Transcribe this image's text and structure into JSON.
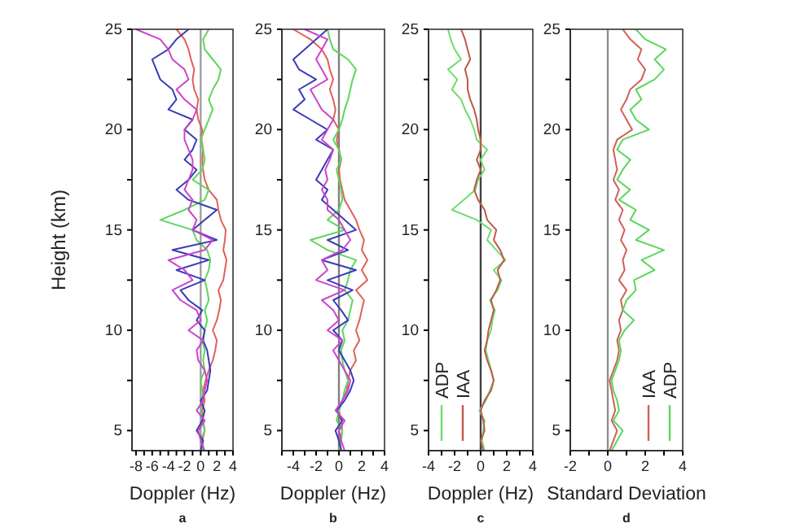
{
  "chart_data": [
    {
      "type": "line",
      "ylabel": "Height (km)",
      "xlabel": "Doppler (Hz)",
      "annotations": [
        "a"
      ],
      "xlim": [
        -8.5,
        4
      ],
      "ylim": [
        4,
        25
      ],
      "xticks": [
        -8,
        {
          "value": -7,
          "label": null
        },
        -6,
        {
          "value": -5,
          "label": null
        },
        -4,
        {
          "value": -3,
          "label": null
        },
        -2,
        {
          "value": -1,
          "label": null
        },
        0,
        {
          "value": 1,
          "label": null
        },
        2,
        {
          "value": 3,
          "label": null
        },
        4
      ],
      "yticks": [
        5,
        {
          "value": 7.5,
          "label": null
        },
        10,
        {
          "value": 12.5,
          "label": null
        },
        15,
        {
          "value": 17.5,
          "label": null
        },
        20,
        {
          "value": 22.5,
          "label": null
        },
        25
      ],
      "ref_lines": [
        {
          "axis": "x",
          "value": 0,
          "color": "#a0a0a0"
        }
      ],
      "legend": false,
      "grid": false,
      "series": [
        {
          "color": "#e0605a",
          "x": [
            0.3,
            0.2,
            0.5,
            0.3,
            0.2,
            0.5,
            0.3,
            0.6,
            1,
            1.5,
            1.8,
            2,
            1.5,
            2,
            2.3,
            2.5,
            2.2,
            2.8,
            3,
            3.2,
            2.8,
            3,
            3.1,
            2.5,
            2.2,
            2,
            1,
            0.5,
            0.3,
            0.2,
            0.3,
            0.1,
            0.2,
            -0.3,
            -0.5,
            -0.3,
            -0.8,
            -1,
            -0.8,
            -1.2,
            -1.5,
            -2,
            -3
          ],
          "values": [
            4,
            4.5,
            5,
            5.5,
            6,
            6.5,
            7,
            7.5,
            8,
            8.5,
            9,
            9.5,
            10,
            10.5,
            11,
            11.5,
            12,
            12.5,
            13,
            13.5,
            14,
            14.5,
            15,
            15.5,
            16,
            16.5,
            17,
            17.5,
            18,
            18.5,
            19,
            19.5,
            20,
            20.5,
            21,
            21.5,
            22,
            22.5,
            23,
            23.5,
            24,
            24.5,
            25
          ]
        },
        {
          "color": "#5cd65c",
          "x": [
            0.3,
            0,
            0.5,
            0.2,
            0,
            0.3,
            0.2,
            0,
            0.5,
            0.3,
            0.5,
            0.2,
            0.5,
            0.8,
            0.5,
            1,
            0.8,
            0.5,
            1,
            1.2,
            0.8,
            -0.5,
            -1,
            -5,
            -2,
            0.5,
            1,
            -1,
            0.2,
            0.5,
            0.3,
            0,
            0.5,
            1,
            1.5,
            1,
            1.5,
            2.2,
            2.5,
            1.5,
            0.5,
            0.3,
            1
          ],
          "values": [
            4,
            4.5,
            5,
            5.5,
            6,
            6.5,
            7,
            7.5,
            8,
            8.5,
            9,
            9.5,
            10,
            10.5,
            11,
            11.5,
            12,
            12.5,
            13,
            13.5,
            14,
            14.5,
            15,
            15.5,
            16,
            16.5,
            17,
            17.5,
            18,
            18.5,
            19,
            19.5,
            20,
            20.5,
            21,
            21.5,
            22,
            22.5,
            23,
            23.5,
            24,
            24.5,
            25
          ]
        },
        {
          "color": "#3b3bb8",
          "x": [
            0,
            0.3,
            -0.5,
            0.2,
            0.5,
            0,
            0.8,
            1,
            1.2,
            1,
            0.8,
            0.3,
            0.5,
            -0.5,
            0.2,
            -1.5,
            -2.5,
            0.5,
            -3,
            1,
            -3.5,
            2,
            -1,
            0.5,
            2,
            -1.5,
            -3,
            -1.5,
            -0.5,
            -2,
            -1,
            -0.5,
            -2,
            -1,
            -4,
            -3,
            -3.5,
            -5,
            -5.5,
            -6,
            -4,
            -3,
            -1.5
          ],
          "values": [
            4,
            4.5,
            5,
            5.5,
            6,
            6.5,
            7,
            7.5,
            8,
            8.5,
            9,
            9.5,
            10,
            10.5,
            11,
            11.5,
            12,
            12.5,
            13,
            13.5,
            14,
            14.5,
            15,
            15.5,
            16,
            16.5,
            17,
            17.5,
            18,
            18.5,
            19,
            19.5,
            20,
            20.5,
            21,
            21.5,
            22,
            22.5,
            23,
            23.5,
            24,
            24.5,
            25
          ]
        },
        {
          "color": "#cc44cc",
          "x": [
            0.5,
            0,
            -0.3,
            0.5,
            -0.5,
            0.3,
            0.5,
            0.8,
            0.5,
            -0.3,
            -0.5,
            0.3,
            -1.5,
            0,
            -0.5,
            -2.5,
            -3.5,
            -1,
            -2,
            -4,
            0.5,
            1.5,
            -1,
            -0.5,
            -1.5,
            -1,
            -2,
            -1.5,
            -1,
            -1,
            -1.5,
            -2,
            -2,
            -1,
            -0.5,
            -2,
            -3,
            -1.5,
            -2,
            -3.5,
            -4,
            -5,
            -8
          ],
          "values": [
            4,
            4.5,
            5,
            5.5,
            6,
            6.5,
            7,
            7.5,
            8,
            8.5,
            9,
            9.5,
            10,
            10.5,
            11,
            11.5,
            12,
            12.5,
            13,
            13.5,
            14,
            14.5,
            15,
            15.5,
            16,
            16.5,
            17,
            17.5,
            18,
            18.5,
            19,
            19.5,
            20,
            20.5,
            21,
            21.5,
            22,
            22.5,
            23,
            23.5,
            24,
            24.5,
            25
          ]
        }
      ]
    },
    {
      "type": "line",
      "xlabel": "Doppler (Hz)",
      "annotations": [
        "b"
      ],
      "xlim": [
        -5,
        4
      ],
      "ylim": [
        4,
        25
      ],
      "xticks": [
        {
          "value": -5,
          "label": null
        },
        -4,
        {
          "value": -3,
          "label": null
        },
        -2,
        {
          "value": -1,
          "label": null
        },
        0,
        {
          "value": 1,
          "label": null
        },
        2,
        {
          "value": 3,
          "label": null
        },
        4
      ],
      "yticks": [
        5,
        {
          "value": 7.5,
          "label": null
        },
        10,
        {
          "value": 12.5,
          "label": null
        },
        15,
        {
          "value": 17.5,
          "label": null
        },
        20,
        {
          "value": 22.5,
          "label": null
        },
        25
      ],
      "ref_lines": [
        {
          "axis": "x",
          "value": 0,
          "color": "#808080"
        }
      ],
      "legend": false,
      "grid": false,
      "series": [
        {
          "color": "#e0605a",
          "x": [
            0.2,
            0.1,
            0.3,
            0.2,
            0,
            0.3,
            0.7,
            0.8,
            1,
            1.5,
            1.3,
            1.8,
            1.5,
            1.8,
            2,
            2.2,
            1.5,
            2.5,
            2,
            2.5,
            2,
            2.2,
            1.8,
            1.5,
            1,
            0.5,
            0.3,
            0.1,
            0,
            0.2,
            0,
            -0.2,
            0,
            -0.5,
            -0.3,
            -0.5,
            -0.8,
            -0.5,
            -0.8,
            -1,
            -1.5,
            -2.5,
            -4
          ],
          "values": [
            4,
            4.5,
            5,
            5.5,
            6,
            6.5,
            7,
            7.5,
            8,
            8.5,
            9,
            9.5,
            10,
            10.5,
            11,
            11.5,
            12,
            12.5,
            13,
            13.5,
            14,
            14.5,
            15,
            15.5,
            16,
            16.5,
            17,
            17.5,
            18,
            18.5,
            19,
            19.5,
            20,
            20.5,
            21,
            21.5,
            22,
            22.5,
            23,
            23.5,
            24,
            24.5,
            25
          ]
        },
        {
          "color": "#5cd65c",
          "x": [
            0,
            0.2,
            0.3,
            -0.2,
            0,
            0.3,
            0.5,
            0.8,
            0.5,
            0.3,
            0.2,
            0.5,
            0.3,
            0.8,
            1,
            1.2,
            0.5,
            0.8,
            1,
            1.5,
            -1,
            -2.5,
            0.5,
            -1,
            0,
            0.3,
            0.2,
            0,
            -0.2,
            0.2,
            0,
            -0.5,
            0,
            0.3,
            0.5,
            0.8,
            1,
            1.2,
            1.5,
            0.8,
            -0.5,
            -0.8,
            -1
          ],
          "values": [
            4,
            4.5,
            5,
            5.5,
            6,
            6.5,
            7,
            7.5,
            8,
            8.5,
            9,
            9.5,
            10,
            10.5,
            11,
            11.5,
            12,
            12.5,
            13,
            13.5,
            14,
            14.5,
            15,
            15.5,
            16,
            16.5,
            17,
            17.5,
            18,
            18.5,
            19,
            19.5,
            20,
            20.5,
            21,
            21.5,
            22,
            22.5,
            23,
            23.5,
            24,
            24.5,
            25
          ]
        },
        {
          "color": "#3b3bb8",
          "x": [
            0.2,
            0,
            -0.3,
            0.3,
            -0.2,
            0.5,
            1,
            1.3,
            1,
            0.5,
            0,
            0.3,
            -0.5,
            0.8,
            0.2,
            -0.5,
            1.2,
            -1,
            1.5,
            -1.5,
            0.8,
            -1,
            1.5,
            0.5,
            -0.5,
            -1.5,
            -1,
            -2,
            -1.5,
            -1,
            -0.5,
            -2,
            -1,
            -2.5,
            -4,
            -3,
            -3.5,
            -2,
            -3.5,
            -4,
            -3,
            -2,
            -1
          ],
          "values": [
            4,
            4.5,
            5,
            5.5,
            6,
            6.5,
            7,
            7.5,
            8,
            8.5,
            9,
            9.5,
            10,
            10.5,
            11,
            11.5,
            12,
            12.5,
            13,
            13.5,
            14,
            14.5,
            15,
            15.5,
            16,
            16.5,
            17,
            17.5,
            18,
            18.5,
            19,
            19.5,
            20,
            20.5,
            21,
            21.5,
            22,
            22.5,
            23,
            23.5,
            24,
            24.5,
            25
          ]
        },
        {
          "color": "#cc44cc",
          "x": [
            0.5,
            0.2,
            0,
            0.5,
            -0.3,
            0.3,
            0.8,
            1,
            0.5,
            0,
            -0.5,
            0.3,
            -1,
            0,
            -0.5,
            -1.5,
            0.5,
            -2,
            -1,
            -1.5,
            0.3,
            1,
            0.5,
            0,
            -1,
            -1,
            -1.5,
            -1,
            -1.2,
            -0.8,
            -0.5,
            -1.5,
            -1,
            -0.5,
            -1.5,
            -2,
            -2.5,
            -1,
            -1.5,
            -2,
            -1.5,
            -1,
            -3
          ],
          "values": [
            4,
            4.5,
            5,
            5.5,
            6,
            6.5,
            7,
            7.5,
            8,
            8.5,
            9,
            9.5,
            10,
            10.5,
            11,
            11.5,
            12,
            12.5,
            13,
            13.5,
            14,
            14.5,
            15,
            15.5,
            16,
            16.5,
            17,
            17.5,
            18,
            18.5,
            19,
            19.5,
            20,
            20.5,
            21,
            21.5,
            22,
            22.5,
            23,
            23.5,
            24,
            24.5,
            25
          ]
        }
      ]
    },
    {
      "type": "line",
      "xlabel": "Doppler (Hz)",
      "annotations": [
        "c"
      ],
      "xlim": [
        -4,
        4
      ],
      "ylim": [
        4,
        25
      ],
      "xticks": [
        -4,
        {
          "value": -3,
          "label": null
        },
        -2,
        {
          "value": -1,
          "label": null
        },
        0,
        {
          "value": 1,
          "label": null
        },
        2,
        {
          "value": 3,
          "label": null
        },
        4
      ],
      "yticks": [
        5,
        {
          "value": 7.5,
          "label": null
        },
        10,
        {
          "value": 12.5,
          "label": null
        },
        15,
        {
          "value": 17.5,
          "label": null
        },
        20,
        {
          "value": 22.5,
          "label": null
        },
        25
      ],
      "ref_lines": [
        {
          "axis": "x",
          "value": 0,
          "color": "#404040"
        }
      ],
      "legend": "bottom left",
      "grid": false,
      "series": [
        {
          "name": "ADP",
          "color": "#6fdc6f",
          "x": [
            0.3,
            0.1,
            0.2,
            0.3,
            -0.1,
            0.4,
            0.7,
            1,
            0.8,
            0.6,
            0.4,
            0.5,
            0.8,
            0.9,
            1.1,
            0.7,
            1.3,
            1.6,
            1,
            1.9,
            1.2,
            0.5,
            0.8,
            -0.3,
            -2.2,
            -1.3,
            -0.4,
            -0.2,
            0.3,
            0,
            0.5,
            -0.3,
            -0.5,
            -0.8,
            -1.2,
            -1.5,
            -2.2,
            -1.8,
            -2.5,
            -1.5,
            -2,
            -2.3,
            -2.5
          ],
          "values": [
            4,
            4.5,
            5,
            5.5,
            6,
            6.5,
            7,
            7.5,
            8,
            8.5,
            9,
            9.5,
            10,
            10.5,
            11,
            11.5,
            12,
            12.5,
            13,
            13.5,
            14,
            14.5,
            15,
            15.5,
            16,
            16.5,
            17,
            17.5,
            18,
            18.5,
            19,
            19.5,
            20,
            20.5,
            21,
            21.5,
            22,
            22.5,
            23,
            23.5,
            24,
            24.5,
            25
          ]
        },
        {
          "name": "IAA",
          "color": "#c0584a",
          "x": [
            0.2,
            0,
            0.3,
            0.2,
            0,
            0.3,
            0.8,
            1,
            0.8,
            0.5,
            0.3,
            0.5,
            0.6,
            0.8,
            1,
            0.8,
            1.2,
            1.5,
            1.3,
            1.8,
            1.5,
            1,
            1.2,
            0.5,
            0.3,
            -0.2,
            -0.5,
            -0.3,
            0,
            -0.3,
            0,
            0,
            -0.2,
            -0.3,
            -0.5,
            -0.8,
            -1,
            -1,
            -1.2,
            -0.8,
            -1,
            -1.2,
            -1.5
          ],
          "values": [
            4,
            4.5,
            5,
            5.5,
            6,
            6.5,
            7,
            7.5,
            8,
            8.5,
            9,
            9.5,
            10,
            10.5,
            11,
            11.5,
            12,
            12.5,
            13,
            13.5,
            14,
            14.5,
            15,
            15.5,
            16,
            16.5,
            17,
            17.5,
            18,
            18.5,
            19,
            19.5,
            20,
            20.5,
            21,
            21.5,
            22,
            22.5,
            23,
            23.5,
            24,
            24.5,
            25
          ]
        }
      ]
    },
    {
      "type": "line",
      "xlabel": "Standard Deviation",
      "annotations": [
        "d"
      ],
      "xlim": [
        -2,
        4
      ],
      "ylim": [
        4,
        25
      ],
      "xticks": [
        -2,
        {
          "value": -1,
          "label": null
        },
        0,
        {
          "value": 1,
          "label": null
        },
        2,
        {
          "value": 3,
          "label": null
        },
        4
      ],
      "yticks": [
        5,
        {
          "value": 7.5,
          "label": null
        },
        10,
        {
          "value": 12.5,
          "label": null
        },
        15,
        {
          "value": 17.5,
          "label": null
        },
        20,
        {
          "value": 22.5,
          "label": null
        },
        25
      ],
      "ref_lines": [
        {
          "axis": "x",
          "value": 0,
          "color": "#909090"
        }
      ],
      "legend": "bottom right",
      "grid": false,
      "series": [
        {
          "name": "IAA",
          "color": "#d0605a",
          "x": [
            0.1,
            0.3,
            0.5,
            0.2,
            0.4,
            0.3,
            0.2,
            0.1,
            0.3,
            0.5,
            0.6,
            0.5,
            0.7,
            0.6,
            0.8,
            0.7,
            1,
            0.6,
            0.9,
            0.8,
            1,
            0.7,
            0.9,
            0.6,
            0.8,
            0.4,
            0.6,
            0.3,
            0.5,
            0.4,
            0.3,
            0.5,
            1.3,
            1,
            0.7,
            1,
            1.2,
            1.8,
            2,
            1.6,
            1.8,
            1.2,
            0.8
          ],
          "values": [
            4,
            4.5,
            5,
            5.5,
            6,
            6.5,
            7,
            7.5,
            8,
            8.5,
            9,
            9.5,
            10,
            10.5,
            11,
            11.5,
            12,
            12.5,
            13,
            13.5,
            14,
            14.5,
            15,
            15.5,
            16,
            16.5,
            17,
            17.5,
            18,
            18.5,
            19,
            19.5,
            20,
            20.5,
            21,
            21.5,
            22,
            22.5,
            23,
            23.5,
            24,
            24.5,
            25
          ]
        },
        {
          "name": "ADP",
          "color": "#5cd65c",
          "x": [
            0.2,
            0.5,
            0.8,
            0.3,
            0.6,
            0.5,
            0.3,
            0.2,
            0.4,
            0.6,
            0.7,
            0.6,
            0.9,
            1.4,
            0.8,
            1,
            1.5,
            1.4,
            2.5,
            1.8,
            3,
            1.5,
            2.2,
            1.2,
            1.5,
            0.6,
            1.2,
            0.5,
            0.8,
            1.2,
            0.5,
            0.8,
            2.2,
            1.5,
            1.2,
            1.8,
            1.5,
            2.5,
            3,
            2.5,
            3.1,
            2,
            1.5
          ],
          "values": [
            4,
            4.5,
            5,
            5.5,
            6,
            6.5,
            7,
            7.5,
            8,
            8.5,
            9,
            9.5,
            10,
            10.5,
            11,
            11.5,
            12,
            12.5,
            13,
            13.5,
            14,
            14.5,
            15,
            15.5,
            16,
            16.5,
            17,
            17.5,
            18,
            18.5,
            19,
            19.5,
            20,
            20.5,
            21,
            21.5,
            22,
            22.5,
            23,
            23.5,
            24,
            24.5,
            25
          ]
        }
      ]
    }
  ]
}
